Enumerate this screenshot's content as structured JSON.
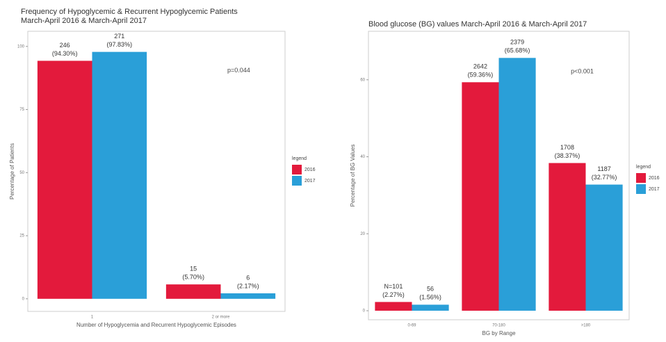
{
  "chart_data": [
    {
      "type": "bar",
      "title": [
        "Frequency of Hypoglycemic & Recurrent Hypoglycemic Patients",
        "March-April 2016 & March-April 2017"
      ],
      "y_label": "Percentage of Patients",
      "x_label": "Number of Hypoglycemia and Recurrent Hypoglycemic Episodes",
      "annotation": "p=0.044",
      "legend_title": "legend",
      "categories": [
        "1",
        "2 or more"
      ],
      "series": [
        {
          "name": "2016",
          "color": "#e31a3c",
          "values": [
            94.3,
            5.7
          ],
          "value_labels": [
            [
              "246",
              "(94.30%)"
            ],
            [
              "15",
              "(5.70%)"
            ]
          ]
        },
        {
          "name": "2017",
          "color": "#2a9fd8",
          "values": [
            97.83,
            2.17
          ],
          "value_labels": [
            [
              "271",
              "(97.83%)"
            ],
            [
              "6",
              "(2.17%)"
            ]
          ]
        }
      ],
      "ylim": [
        -5,
        106
      ],
      "yticks": [
        0,
        25,
        50,
        75,
        100
      ]
    },
    {
      "type": "bar",
      "title": [
        "Blood glucose (BG) values March-April 2016 & March-April 2017"
      ],
      "y_label": "Percentage of BG Values",
      "x_label": "BG by Range",
      "annotation": "p<0.001",
      "legend_title": "legend",
      "categories": [
        "0-69",
        "70-180",
        ">180"
      ],
      "series": [
        {
          "name": "2016",
          "color": "#e31a3c",
          "values": [
            2.27,
            59.36,
            38.37
          ],
          "value_labels": [
            [
              "N=101",
              "(2.27%)"
            ],
            [
              "2642",
              "(59.36%)"
            ],
            [
              "1708",
              "(38.37%)"
            ]
          ]
        },
        {
          "name": "2017",
          "color": "#2a9fd8",
          "values": [
            1.56,
            65.68,
            32.77
          ],
          "value_labels": [
            [
              "56",
              "(1.56%)"
            ],
            [
              "2379",
              "(65.68%)"
            ],
            [
              "1187",
              "(32.77%)"
            ]
          ]
        }
      ],
      "ylim": [
        -2.35,
        72.6
      ],
      "yticks": [
        0,
        20,
        40,
        60
      ]
    }
  ]
}
